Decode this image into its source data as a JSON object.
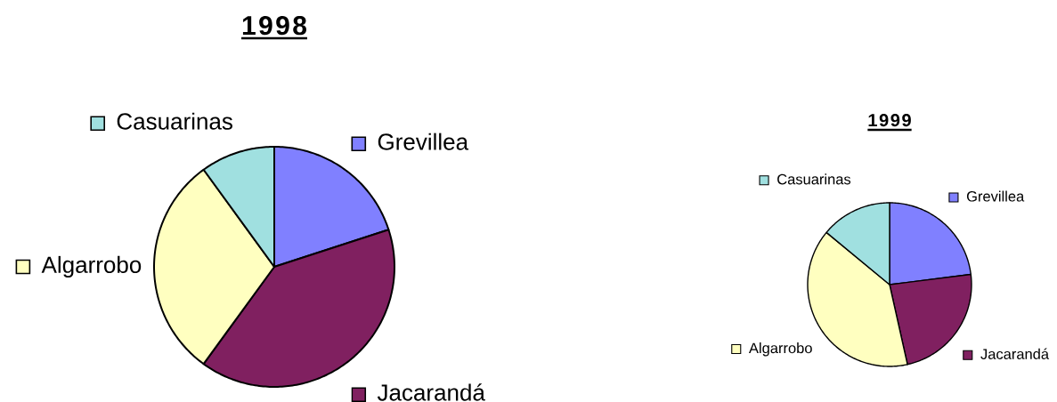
{
  "chart_data": [
    {
      "type": "pie",
      "title": "1998",
      "categories": [
        "Grevillea",
        "Jacarandá",
        "Algarrobo",
        "Casuarinas"
      ],
      "values": [
        20,
        40,
        30,
        10
      ],
      "colors": [
        "#8080ff",
        "#802060",
        "#ffffc0",
        "#a0e0e0"
      ],
      "legend": true
    },
    {
      "type": "pie",
      "title": "1999",
      "categories": [
        "Grevillea",
        "Jacarandá",
        "Algarrobo",
        "Casuarinas"
      ],
      "values": [
        23,
        23.5,
        39.5,
        14
      ],
      "colors": [
        "#8080ff",
        "#802060",
        "#ffffc0",
        "#a0e0e0"
      ],
      "legend": true
    }
  ]
}
